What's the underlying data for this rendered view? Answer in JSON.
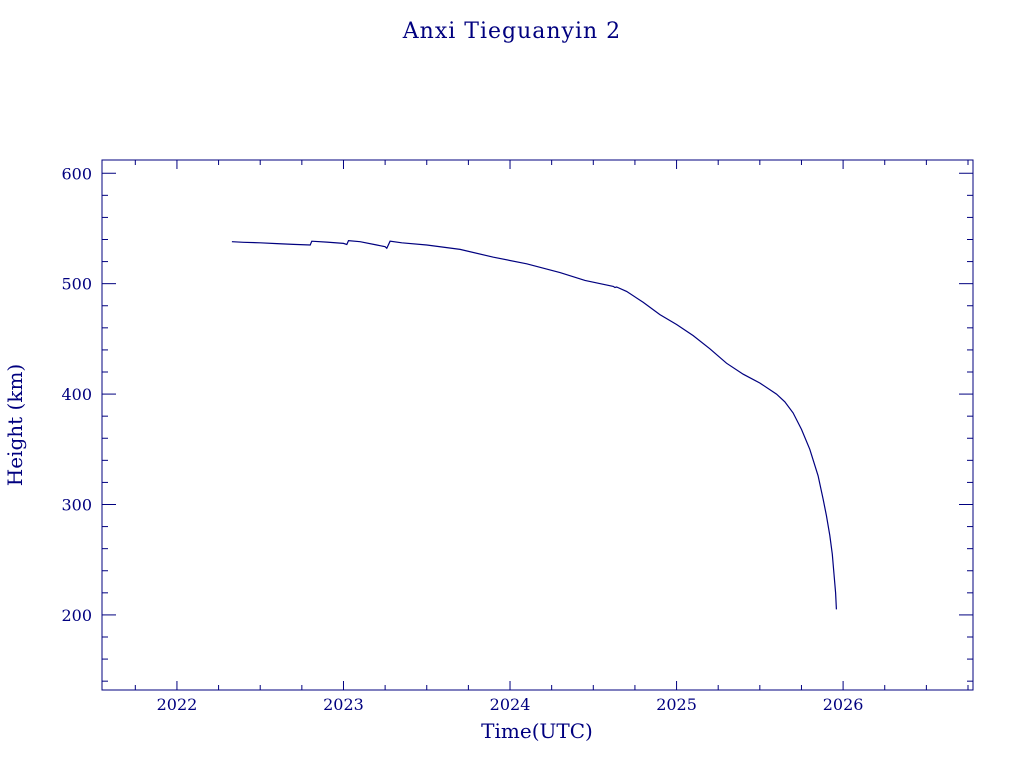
{
  "chart_data": {
    "type": "line",
    "title": "Anxi Tieguanyin 2",
    "xlabel": "Time(UTC)",
    "ylabel": "Height (km)",
    "xlim": [
      2021.55,
      2026.78
    ],
    "ylim": [
      132,
      612
    ],
    "x_ticks": [
      2022,
      2023,
      2024,
      2025,
      2026
    ],
    "y_ticks": [
      200,
      300,
      400,
      500,
      600
    ],
    "grid": false,
    "color": "#00007f",
    "series": [
      {
        "values": [
          [
            2022.33,
            538
          ],
          [
            2022.4,
            537.5
          ],
          [
            2022.5,
            537
          ],
          [
            2022.6,
            536.3
          ],
          [
            2022.7,
            535.6
          ],
          [
            2022.8,
            535
          ],
          [
            2022.81,
            538.5
          ],
          [
            2022.9,
            537.6
          ],
          [
            2023.0,
            536.5
          ],
          [
            2023.02,
            535.5
          ],
          [
            2023.03,
            539
          ],
          [
            2023.1,
            538
          ],
          [
            2023.2,
            535
          ],
          [
            2023.25,
            533.5
          ],
          [
            2023.26,
            532
          ],
          [
            2023.28,
            538.5
          ],
          [
            2023.35,
            537
          ],
          [
            2023.5,
            535
          ],
          [
            2023.7,
            531
          ],
          [
            2023.9,
            524
          ],
          [
            2024.1,
            518
          ],
          [
            2024.3,
            510
          ],
          [
            2024.45,
            503
          ],
          [
            2024.62,
            497.5
          ],
          [
            2024.63,
            496.5
          ],
          [
            2024.64,
            497
          ],
          [
            2024.7,
            493
          ],
          [
            2024.8,
            483
          ],
          [
            2024.9,
            472
          ],
          [
            2025.0,
            463
          ],
          [
            2025.1,
            453
          ],
          [
            2025.2,
            441
          ],
          [
            2025.3,
            428
          ],
          [
            2025.4,
            418
          ],
          [
            2025.5,
            410
          ],
          [
            2025.6,
            400
          ],
          [
            2025.65,
            393
          ],
          [
            2025.7,
            383
          ],
          [
            2025.75,
            368
          ],
          [
            2025.8,
            350
          ],
          [
            2025.85,
            326
          ],
          [
            2025.88,
            305
          ],
          [
            2025.9,
            290
          ],
          [
            2025.92,
            272
          ],
          [
            2025.935,
            255
          ],
          [
            2025.945,
            238
          ],
          [
            2025.955,
            220
          ],
          [
            2025.96,
            205
          ]
        ]
      }
    ]
  }
}
